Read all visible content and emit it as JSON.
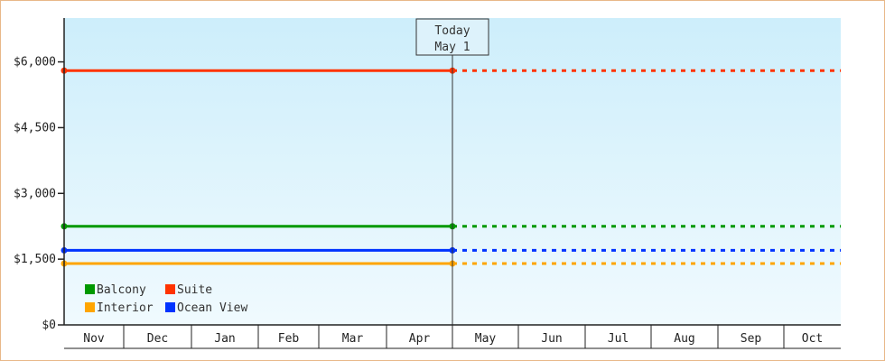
{
  "chart_data": {
    "type": "line",
    "title": "",
    "xlabel": "",
    "ylabel": "",
    "ylim": [
      0,
      7000
    ],
    "y_ticks": [
      {
        "value": 0,
        "label": "$0"
      },
      {
        "value": 1500,
        "label": "$1,500"
      },
      {
        "value": 3000,
        "label": "$3,000"
      },
      {
        "value": 4500,
        "label": "$4,500"
      },
      {
        "value": 6000,
        "label": "$6,000"
      }
    ],
    "months": [
      "Nov",
      "Dec",
      "Jan",
      "Feb",
      "Mar",
      "Apr",
      "May",
      "Jun",
      "Jul",
      "Aug",
      "Sep",
      "Oct"
    ],
    "today": {
      "line1": "Today",
      "line2": "May 1"
    },
    "today_index": 6,
    "series": [
      {
        "name": "Balcony",
        "color": "#009900",
        "value": 2250
      },
      {
        "name": "Suite",
        "color": "#ff3300",
        "value": 5800
      },
      {
        "name": "Interior",
        "color": "#ffa500",
        "value": 1400
      },
      {
        "name": "Ocean View",
        "color": "#0033ff",
        "value": 1700
      }
    ],
    "legend_position": "bottom-left",
    "grid": false
  }
}
